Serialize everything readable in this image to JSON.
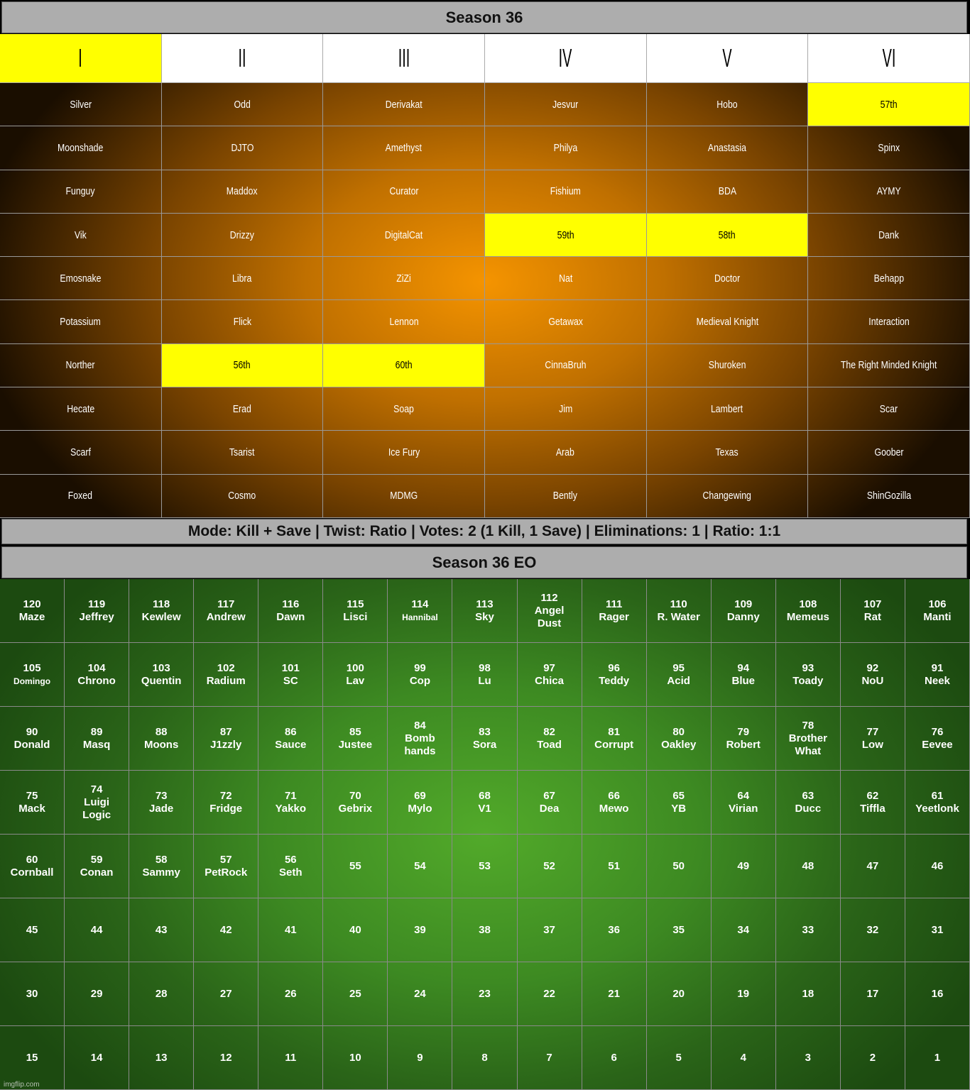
{
  "title": "Season 36",
  "columns": [
    {
      "label": "I",
      "highlight": true
    },
    {
      "label": "II",
      "highlight": false
    },
    {
      "label": "III",
      "highlight": false
    },
    {
      "label": "IV",
      "highlight": false
    },
    {
      "label": "V",
      "highlight": false
    },
    {
      "label": "VI",
      "highlight": false
    }
  ],
  "rows": [
    [
      "Silver",
      "Odd",
      "Derivakat",
      "Jesvur",
      "Hobo",
      "57th"
    ],
    [
      "Moonshade",
      "DJTO",
      "Amethyst",
      "Philya",
      "Anastasia",
      "Spinx"
    ],
    [
      "Funguy",
      "Maddox",
      "Curator",
      "Fishium",
      "BDA",
      "AYMY"
    ],
    [
      "Vik",
      "Drizzy",
      "DigitalCat",
      "59th",
      "58th",
      "Dank"
    ],
    [
      "Emosnake",
      "Libra",
      "ZiZi",
      "Nat",
      "Doctor",
      "Behapp"
    ],
    [
      "Potassium",
      "Flick",
      "Lennon",
      "Getawax",
      "Medieval Knight",
      "Interaction"
    ],
    [
      "Norther",
      "56th",
      "60th",
      "CinnaBruh",
      "Shuroken",
      "The Right Minded Knight"
    ],
    [
      "Hecate",
      "Erad",
      "Soap",
      "Jim",
      "Lambert",
      "Scar"
    ],
    [
      "Scarf",
      "Tsarist",
      "Ice Fury",
      "Arab",
      "Texas",
      "Goober"
    ],
    [
      "Foxed",
      "Cosmo",
      "MDMG",
      "Bently",
      "Changewing",
      "ShinGozilla"
    ]
  ],
  "highlight_color": "#ffff00",
  "mode_line": "Mode: Kill + Save | Twist: Ratio | Votes: 2 (1 Kill, 1 Save) | Eliminations: 1 | Ratio: 1:1",
  "eo_title": "Season 36 EO",
  "eo_cells": [
    {
      "num": "120",
      "name": "Maze"
    },
    {
      "num": "119",
      "name": "Jeffrey"
    },
    {
      "num": "118",
      "name": "Kewlew"
    },
    {
      "num": "117",
      "name": "Andrew"
    },
    {
      "num": "116",
      "name": "Dawn"
    },
    {
      "num": "115",
      "name": "Lisci"
    },
    {
      "num": "114",
      "name": "Hannibal"
    },
    {
      "num": "113",
      "name": "Sky"
    },
    {
      "num": "112",
      "name": "Angel\nDust"
    },
    {
      "num": "111",
      "name": "Rager"
    },
    {
      "num": "110",
      "name": "R. Water"
    },
    {
      "num": "109",
      "name": "Danny"
    },
    {
      "num": "108",
      "name": "Memeus"
    },
    {
      "num": "107",
      "name": "Rat"
    },
    {
      "num": "106",
      "name": "Manti"
    },
    {
      "num": "105",
      "name": "Domingo"
    },
    {
      "num": "104",
      "name": "Chrono"
    },
    {
      "num": "103",
      "name": "Quentin"
    },
    {
      "num": "102",
      "name": "Radium"
    },
    {
      "num": "101",
      "name": "SC"
    },
    {
      "num": "100",
      "name": "Lav"
    },
    {
      "num": "99",
      "name": "Cop"
    },
    {
      "num": "98",
      "name": "Lu"
    },
    {
      "num": "97",
      "name": "Chica"
    },
    {
      "num": "96",
      "name": "Teddy"
    },
    {
      "num": "95",
      "name": "Acid"
    },
    {
      "num": "94",
      "name": "Blue"
    },
    {
      "num": "93",
      "name": "Toady"
    },
    {
      "num": "92",
      "name": "NoU"
    },
    {
      "num": "91",
      "name": "Neek"
    },
    {
      "num": "90",
      "name": "Donald"
    },
    {
      "num": "89",
      "name": "Masq"
    },
    {
      "num": "88",
      "name": "Moons"
    },
    {
      "num": "87",
      "name": "J1zzly"
    },
    {
      "num": "86",
      "name": "Sauce"
    },
    {
      "num": "85",
      "name": "Justee"
    },
    {
      "num": "84",
      "name": "Bomb\nhands"
    },
    {
      "num": "83",
      "name": "Sora"
    },
    {
      "num": "82",
      "name": "Toad"
    },
    {
      "num": "81",
      "name": "Corrupt"
    },
    {
      "num": "80",
      "name": "Oakley"
    },
    {
      "num": "79",
      "name": "Robert"
    },
    {
      "num": "78",
      "name": "Brother\nWhat"
    },
    {
      "num": "77",
      "name": "Low"
    },
    {
      "num": "76",
      "name": "Eevee"
    },
    {
      "num": "75",
      "name": "Mack"
    },
    {
      "num": "74",
      "name": "Luigi\nLogic"
    },
    {
      "num": "73",
      "name": "Jade"
    },
    {
      "num": "72",
      "name": "Fridge"
    },
    {
      "num": "71",
      "name": "Yakko"
    },
    {
      "num": "70",
      "name": "Gebrix"
    },
    {
      "num": "69",
      "name": "Mylo"
    },
    {
      "num": "68",
      "name": "V1"
    },
    {
      "num": "67",
      "name": "Dea"
    },
    {
      "num": "66",
      "name": "Mewo"
    },
    {
      "num": "65",
      "name": "YB"
    },
    {
      "num": "64",
      "name": "Virian"
    },
    {
      "num": "63",
      "name": "Ducc"
    },
    {
      "num": "62",
      "name": "Tiffla"
    },
    {
      "num": "61",
      "name": "Yeetlonk"
    },
    {
      "num": "60",
      "name": "Cornball"
    },
    {
      "num": "59",
      "name": "Conan"
    },
    {
      "num": "58",
      "name": "Sammy"
    },
    {
      "num": "57",
      "name": "PetRock"
    },
    {
      "num": "56",
      "name": "Seth"
    },
    {
      "num": "55",
      "name": ""
    },
    {
      "num": "54",
      "name": ""
    },
    {
      "num": "53",
      "name": ""
    },
    {
      "num": "52",
      "name": ""
    },
    {
      "num": "51",
      "name": ""
    },
    {
      "num": "50",
      "name": ""
    },
    {
      "num": "49",
      "name": ""
    },
    {
      "num": "48",
      "name": ""
    },
    {
      "num": "47",
      "name": ""
    },
    {
      "num": "46",
      "name": ""
    },
    {
      "num": "45",
      "name": ""
    },
    {
      "num": "44",
      "name": ""
    },
    {
      "num": "43",
      "name": ""
    },
    {
      "num": "42",
      "name": ""
    },
    {
      "num": "41",
      "name": ""
    },
    {
      "num": "40",
      "name": ""
    },
    {
      "num": "39",
      "name": ""
    },
    {
      "num": "38",
      "name": ""
    },
    {
      "num": "37",
      "name": ""
    },
    {
      "num": "36",
      "name": ""
    },
    {
      "num": "35",
      "name": ""
    },
    {
      "num": "34",
      "name": ""
    },
    {
      "num": "33",
      "name": ""
    },
    {
      "num": "32",
      "name": ""
    },
    {
      "num": "31",
      "name": ""
    },
    {
      "num": "30",
      "name": ""
    },
    {
      "num": "29",
      "name": ""
    },
    {
      "num": "28",
      "name": ""
    },
    {
      "num": "27",
      "name": ""
    },
    {
      "num": "26",
      "name": ""
    },
    {
      "num": "25",
      "name": ""
    },
    {
      "num": "24",
      "name": ""
    },
    {
      "num": "23",
      "name": ""
    },
    {
      "num": "22",
      "name": ""
    },
    {
      "num": "21",
      "name": ""
    },
    {
      "num": "20",
      "name": ""
    },
    {
      "num": "19",
      "name": ""
    },
    {
      "num": "18",
      "name": ""
    },
    {
      "num": "17",
      "name": ""
    },
    {
      "num": "16",
      "name": ""
    },
    {
      "num": "15",
      "name": ""
    },
    {
      "num": "14",
      "name": ""
    },
    {
      "num": "13",
      "name": ""
    },
    {
      "num": "12",
      "name": ""
    },
    {
      "num": "11",
      "name": ""
    },
    {
      "num": "10",
      "name": ""
    },
    {
      "num": "9",
      "name": ""
    },
    {
      "num": "8",
      "name": ""
    },
    {
      "num": "7",
      "name": ""
    },
    {
      "num": "6",
      "name": ""
    },
    {
      "num": "5",
      "name": ""
    },
    {
      "num": "4",
      "name": ""
    },
    {
      "num": "3",
      "name": ""
    },
    {
      "num": "2",
      "name": ""
    },
    {
      "num": "1",
      "name": ""
    }
  ],
  "watermark": "imgflip.com"
}
